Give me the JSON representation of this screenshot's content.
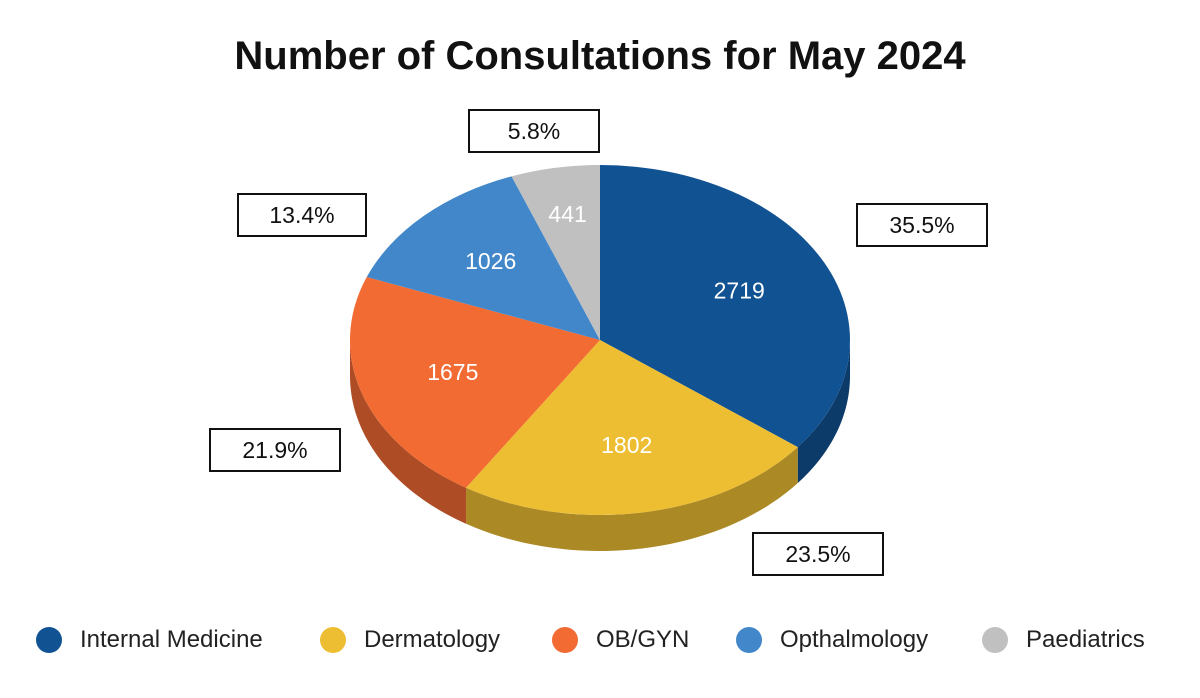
{
  "chart_data": {
    "type": "pie",
    "title": "Number of Consultations for May 2024",
    "slices": [
      {
        "name": "Internal Medicine",
        "value": 2719,
        "percent_label": "35.5%",
        "color": "#115293"
      },
      {
        "name": "Dermatology",
        "value": 1802,
        "percent_label": "23.5%",
        "color": "#EDBE32"
      },
      {
        "name": "OB/GYN",
        "value": 1675,
        "percent_label": "21.9%",
        "color": "#F26B33"
      },
      {
        "name": "Opthalmology",
        "value": 1026,
        "percent_label": "13.4%",
        "color": "#4287C9"
      },
      {
        "name": "Paediatrics",
        "value": 441,
        "percent_label": "5.8%",
        "color": "#C0C0C0"
      }
    ],
    "legend_position": "bottom",
    "style": "3d"
  }
}
